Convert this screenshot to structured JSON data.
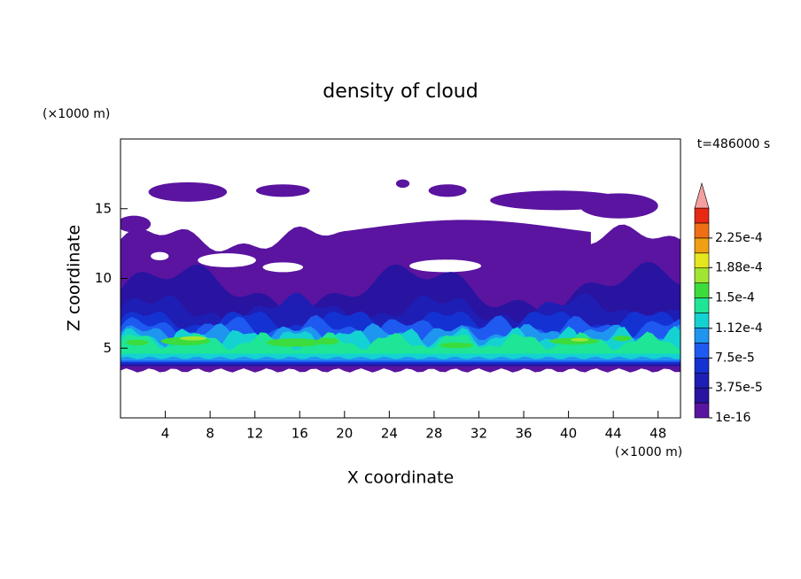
{
  "chart_data": {
    "type": "contour",
    "title": "density of cloud",
    "x_label": "X coordinate",
    "y_label": "Z coordinate",
    "x_unit": "(×1000 m)",
    "y_unit": "(×1000 m)",
    "annotation": "t=486000 s",
    "xlim": [
      0,
      50
    ],
    "ylim": [
      0,
      20
    ],
    "xticks": [
      4,
      8,
      12,
      16,
      20,
      24,
      28,
      32,
      36,
      40,
      44,
      48
    ],
    "yticks": [
      5,
      10,
      15
    ],
    "colorbar": {
      "clim": [
        0,
        0.0002625
      ],
      "colors": [
        "#5a14a0",
        "#2814a0",
        "#1e1eb4",
        "#1432d2",
        "#1e5af0",
        "#1e96f0",
        "#14d2d2",
        "#1ee696",
        "#3cdc3c",
        "#a0e632",
        "#e6e61e",
        "#f0a014",
        "#f06e14",
        "#e62814"
      ],
      "extend_color": "#f4a0a0",
      "ticks": [
        {
          "value": 1e-16,
          "label": "1e-16"
        },
        {
          "value": 3.75e-05,
          "label": "3.75e-5"
        },
        {
          "value": 7.5e-05,
          "label": "7.5e-5"
        },
        {
          "value": 0.000112,
          "label": "1.12e-4"
        },
        {
          "value": 0.00015,
          "label": "1.5e-4"
        },
        {
          "value": 0.000188,
          "label": "1.88e-4"
        },
        {
          "value": 0.000225,
          "label": "2.25e-4"
        }
      ]
    }
  }
}
